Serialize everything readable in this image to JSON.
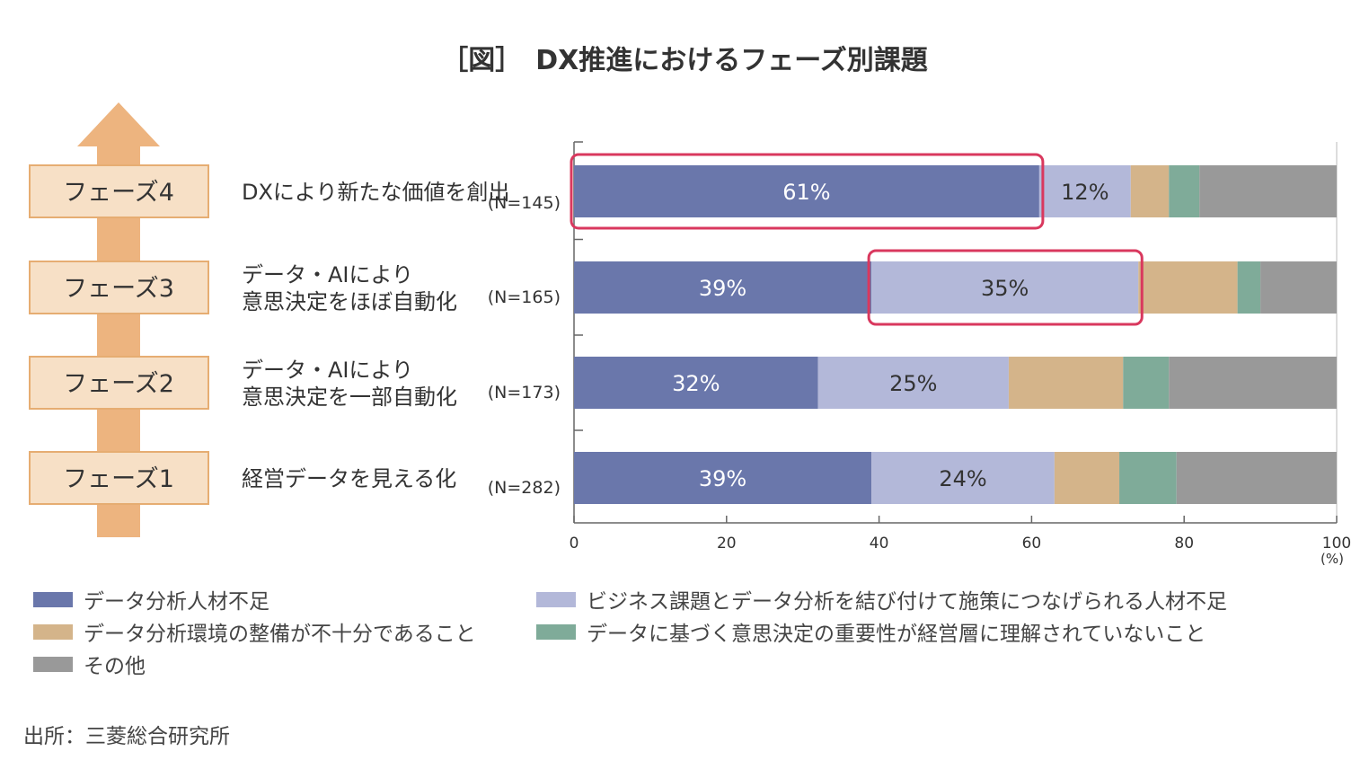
{
  "title": "［図］　DX推進におけるフェーズ別課題",
  "source": "出所：三菱総合研究所",
  "chart_data": {
    "type": "bar",
    "orientation": "horizontal-stacked",
    "categories": [
      {
        "phase": "フェーズ4",
        "label_lines": [
          "DXにより新たな価値を創出"
        ],
        "n": "(N=145)"
      },
      {
        "phase": "フェーズ3",
        "label_lines": [
          "データ・AIにより",
          "意思決定をほぼ自動化"
        ],
        "n": "(N=165)"
      },
      {
        "phase": "フェーズ2",
        "label_lines": [
          "データ・AIにより",
          "意思決定を一部自動化"
        ],
        "n": "(N=173)"
      },
      {
        "phase": "フェーズ1",
        "label_lines": [
          "経営データを見える化"
        ],
        "n": "(N=282)"
      }
    ],
    "series": [
      {
        "name": "データ分析人材不足",
        "color": "#6a77ab",
        "values": [
          61,
          39,
          32,
          39
        ],
        "labels": [
          "61%",
          "39%",
          "32%",
          "39%"
        ]
      },
      {
        "name": "ビジネス課題とデータ分析を結び付けて施策につなげられる人材不足",
        "color": "#b3b8d9",
        "values": [
          12,
          35,
          25,
          24
        ],
        "labels": [
          "12%",
          "35%",
          "25%",
          "24%"
        ]
      },
      {
        "name": "データ分析環境の整備が不十分であること",
        "color": "#d4b48a",
        "values": [
          5,
          13,
          15,
          8.5
        ],
        "labels": [
          "",
          "",
          "",
          ""
        ]
      },
      {
        "name": "データに基づく意思決定の重要性が経営層に理解されていないこと",
        "color": "#7fab99",
        "values": [
          4,
          3,
          6,
          7.5
        ],
        "labels": [
          "",
          "",
          "",
          ""
        ]
      },
      {
        "name": "その他",
        "color": "#999999",
        "values": [
          18,
          10,
          22,
          21
        ],
        "labels": [
          "",
          "",
          "",
          ""
        ]
      }
    ],
    "highlights": [
      {
        "category_index": 0,
        "series_index": 0,
        "color": "#d9385e"
      },
      {
        "category_index": 1,
        "series_index": 1,
        "color": "#d9385e"
      }
    ],
    "xlim": [
      0,
      100
    ],
    "xticks": [
      "0",
      "20",
      "40",
      "60",
      "80",
      "100"
    ],
    "x_unit": "(%)",
    "grid": false,
    "legend_position": "bottom",
    "arrow_color": "#edb47f",
    "phase_box_fill": "#f7e0c6",
    "phase_box_border": "#e6ad72"
  }
}
